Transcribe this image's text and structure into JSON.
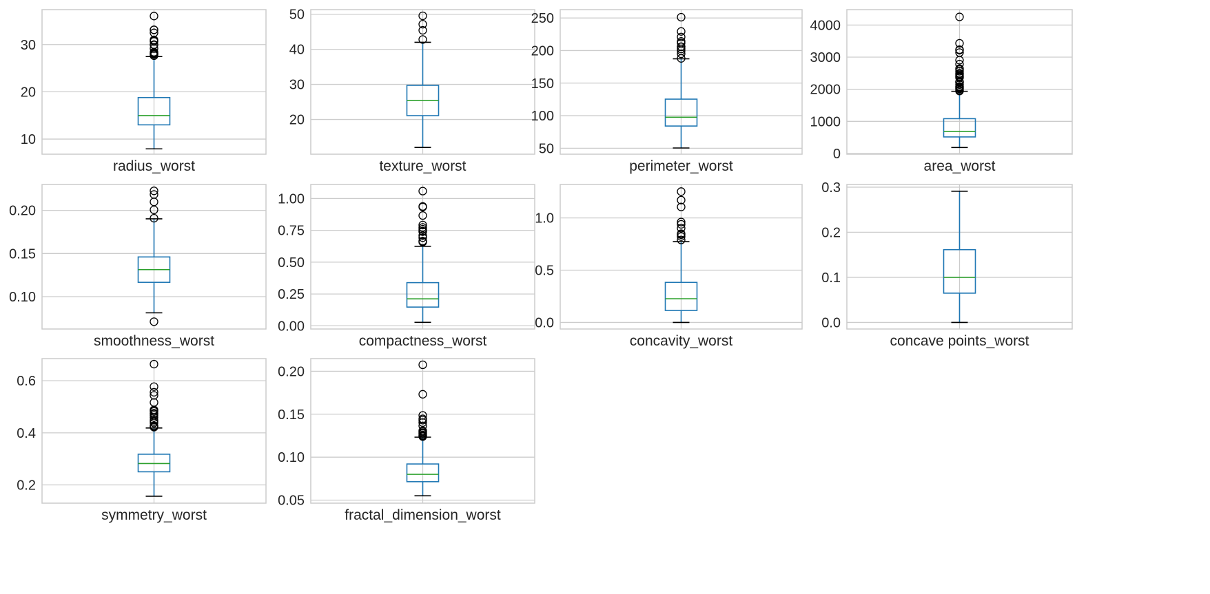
{
  "chart_data": [
    {
      "type": "box",
      "xlabel": "radius_worst",
      "yticks": [
        10,
        20,
        30
      ],
      "ylim": [
        6.8,
        37.4
      ],
      "box": {
        "whislo": 7.93,
        "q1": 13.01,
        "med": 14.97,
        "q3": 18.79,
        "whishi": 27.46
      },
      "fliers": [
        27.66,
        27.9,
        28.01,
        28.11,
        28.19,
        28.4,
        29.17,
        29.92,
        30.0,
        30.67,
        30.79,
        31.01,
        32.49,
        33.12,
        33.13,
        36.04
      ]
    },
    {
      "type": "box",
      "xlabel": "texture_worst",
      "yticks": [
        20,
        30,
        40,
        50
      ],
      "ylim": [
        10.1,
        51.3
      ],
      "box": {
        "whislo": 12.02,
        "q1": 21.08,
        "med": 25.41,
        "q3": 29.72,
        "whishi": 42.0
      },
      "fliers": [
        42.79,
        45.41,
        47.16,
        49.54
      ]
    },
    {
      "type": "box",
      "xlabel": "perimeter_worst",
      "yticks": [
        50,
        100,
        150,
        200,
        250
      ],
      "ylim": [
        40.9,
        262.8
      ],
      "box": {
        "whislo": 50.41,
        "q1": 84.11,
        "med": 97.66,
        "q3": 125.4,
        "whishi": 187.3
      },
      "fliers": [
        188.0,
        195.0,
        199.5,
        202.4,
        205.7,
        206.0,
        211.5,
        214.0,
        220.8,
        229.3,
        251.2
      ]
    },
    {
      "type": "box",
      "xlabel": "area_worst",
      "yticks": [
        0,
        1000,
        2000,
        3000,
        4000
      ],
      "ylim": [
        -22,
        4480
      ],
      "box": {
        "whislo": 185.2,
        "q1": 515.3,
        "med": 686.5,
        "q3": 1084.0,
        "whishi": 1937.0
      },
      "fliers": [
        1945,
        1972,
        2010,
        2027,
        2053,
        2073,
        2089,
        2145,
        2215,
        2227,
        2232,
        2360,
        2384,
        2403,
        2442,
        2477,
        2499,
        2562,
        2615,
        2642,
        2782,
        2906,
        3143,
        3216,
        3234,
        3432,
        4254
      ]
    },
    {
      "type": "box",
      "xlabel": "smoothness_worst",
      "yticks": [
        0.1,
        0.15,
        0.2
      ],
      "ylim": [
        0.0625,
        0.23
      ],
      "box": {
        "whislo": 0.08125,
        "q1": 0.1166,
        "med": 0.1313,
        "q3": 0.146,
        "whishi": 0.1902
      },
      "fliers": [
        0.071,
        0.1909,
        0.2006,
        0.2098,
        0.2184,
        0.2226
      ]
    },
    {
      "type": "box",
      "xlabel": "compactness_worst",
      "yticks": [
        0.0,
        0.25,
        0.5,
        0.75,
        1.0
      ],
      "ylim": [
        -0.025,
        1.11
      ],
      "box": {
        "whislo": 0.02729,
        "q1": 0.1472,
        "med": 0.2119,
        "q3": 0.3391,
        "whishi": 0.6247
      },
      "fliers": [
        0.6577,
        0.6643,
        0.6656,
        0.6922,
        0.709,
        0.7394,
        0.7444,
        0.7584,
        0.7725,
        0.7917,
        0.8663,
        0.9327,
        0.9379,
        1.058
      ]
    },
    {
      "type": "box",
      "xlabel": "concavity_worst",
      "yticks": [
        0.0,
        0.5,
        1.0
      ],
      "ylim": [
        -0.063,
        1.32
      ],
      "box": {
        "whislo": 0.0,
        "q1": 0.1145,
        "med": 0.2267,
        "q3": 0.3829,
        "whishi": 0.7727
      },
      "fliers": [
        0.7892,
        0.8216,
        0.8402,
        0.8488,
        0.9019,
        0.9387,
        0.9608,
        1.105,
        1.17,
        1.252
      ]
    },
    {
      "type": "box",
      "xlabel": "concave points_worst",
      "yticks": [
        0.0,
        0.1,
        0.2,
        0.3
      ],
      "ylim": [
        -0.0146,
        0.306
      ],
      "box": {
        "whislo": 0.0,
        "q1": 0.06493,
        "med": 0.09993,
        "q3": 0.1614,
        "whishi": 0.291
      },
      "fliers": []
    },
    {
      "type": "box",
      "xlabel": "symmetry_worst",
      "yticks": [
        0.2,
        0.4,
        0.6
      ],
      "ylim": [
        0.13,
        0.685
      ],
      "box": {
        "whislo": 0.1565,
        "q1": 0.2504,
        "med": 0.2822,
        "q3": 0.3179,
        "whishi": 0.4186
      },
      "fliers": [
        0.4218,
        0.4245,
        0.427,
        0.4378,
        0.4432,
        0.4489,
        0.459,
        0.467,
        0.4724,
        0.4753,
        0.4821,
        0.4863,
        0.4882,
        0.5166,
        0.544,
        0.5558,
        0.5774,
        0.6638
      ]
    },
    {
      "type": "box",
      "xlabel": "fractal_dimension_worst",
      "yticks": [
        0.05,
        0.1,
        0.15,
        0.2
      ],
      "ylim": [
        0.0465,
        0.2147
      ],
      "box": {
        "whislo": 0.05504,
        "q1": 0.07146,
        "med": 0.08004,
        "q3": 0.09208,
        "whishi": 0.1233
      },
      "fliers": [
        0.124,
        0.1249,
        0.1259,
        0.1275,
        0.1284,
        0.1297,
        0.1308,
        0.1364,
        0.1403,
        0.1431,
        0.1446,
        0.1486,
        0.1732,
        0.2075
      ]
    }
  ],
  "colors": {
    "box": "#1f77b4",
    "median": "#2ca02c",
    "whisker": "#1f77b4",
    "cap": "#000000",
    "flier": "#000000",
    "grid": "#cccccc",
    "frame": "#cccccc",
    "text": "#262626"
  }
}
